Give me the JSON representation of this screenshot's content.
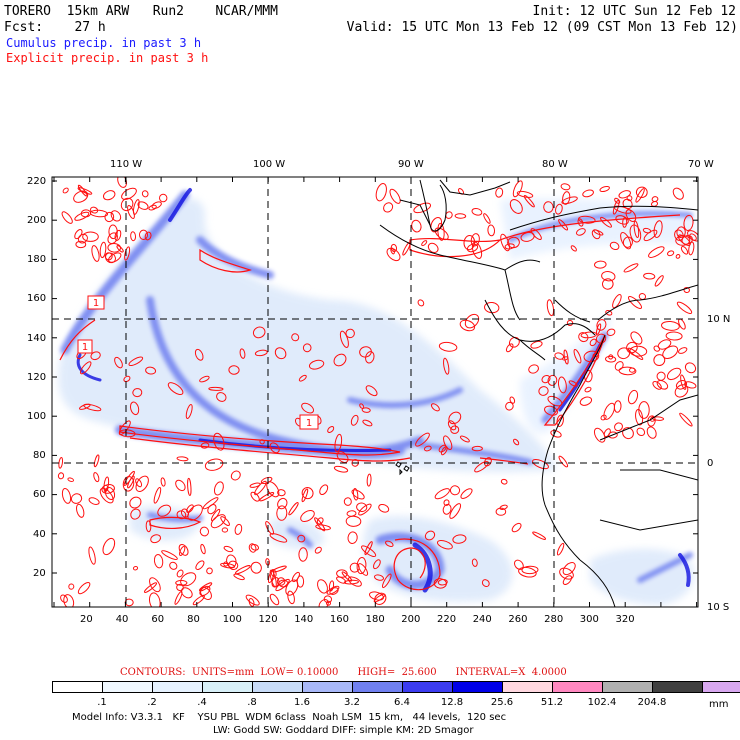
{
  "header": {
    "model_name": "TORERO  15km ARW   Run2    NCAR/MMM",
    "init": "Init: 12 UTC Sun 12 Feb 12",
    "fcst": "Fcst:    27 h",
    "valid": "Valid: 15 UTC Mon 13 Feb 12 (09 CST Mon 13 Feb 12)",
    "field1": "Cumulus precip. in past 3 h",
    "field2": "Explicit precip. in past 3 h"
  },
  "map": {
    "lon_labels": [
      "110 W",
      "100 W",
      "90 W",
      "80 W",
      "70 W"
    ],
    "lat_labels": [
      "10 N",
      "0",
      "10 S"
    ],
    "y_ticks": [
      "220",
      "200",
      "180",
      "160",
      "140",
      "120",
      "100",
      "80",
      "60",
      "40",
      "20"
    ],
    "x_ticks": [
      "20",
      "40",
      "60",
      "80",
      "100",
      "120",
      "140",
      "160",
      "180",
      "200",
      "220",
      "240",
      "260",
      "280",
      "300",
      "320"
    ],
    "contour_labels": [
      "1",
      "1",
      "1"
    ],
    "colors": {
      "grid": "#000000",
      "coast": "#000000",
      "contour": "#ff1010"
    }
  },
  "contours_line": {
    "label": "CONTOURS:  UNITS=mm  LOW= 0.10000      HIGH=  25.600      INTERVAL=X  4.0000"
  },
  "legend": {
    "labels": [
      ".1",
      ".2",
      ".4",
      ".8",
      "1.6",
      "3.2",
      "6.4",
      "12.8",
      "25.6",
      "51.2",
      "102.4",
      "204.8"
    ],
    "unit": "mm",
    "colors": [
      "#ffffff",
      "#f0f8ff",
      "#e6f2ff",
      "#d8f0f8",
      "#c8dcf8",
      "#a8b8f8",
      "#7080f0",
      "#3c3cf0",
      "#0000e8",
      "#ffd8e0",
      "#ff88c0",
      "#b0b0b0",
      "#404040",
      "#d8a8f0"
    ]
  },
  "info": {
    "line1": "Model Info: V3.3.1   KF    YSU PBL  WDM 6class  Noah LSM  15 km,   44 levels,  120 sec",
    "line2": "LW: Godd SW: Goddard DIFF: simple KM: 2D Smagor"
  }
}
